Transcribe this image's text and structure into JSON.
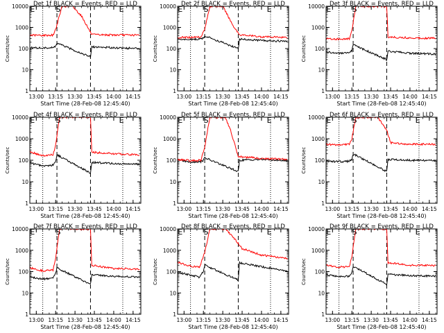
{
  "figure": {
    "xlabel": "Start Time (28-Feb-08 12:45:40)",
    "ylabel": "Counts/sec",
    "colors": {
      "events": "#000000",
      "lld": "#ff0000",
      "axes": "#000000"
    },
    "markers": {
      "E": "E",
      "S": "S"
    }
  },
  "chart_data": [
    {
      "type": "line",
      "title": "Det 1f BLACK = Events, RED = LLD",
      "xlabel": "Start Time (28-Feb-08 12:45:40)",
      "ylabel": "Counts/sec",
      "yscale": "log",
      "ylim": [
        1,
        10000
      ],
      "x_ticks": [
        "13:00",
        "13:15",
        "13:30",
        "13:45",
        "14:00",
        "14:15"
      ],
      "y_ticks": [
        "1",
        "10",
        "100",
        "1000",
        "10000"
      ],
      "dotted_x": [
        "13:05",
        "14:07"
      ],
      "dashed_x": [
        "13:16",
        "13:42"
      ],
      "markers": [
        {
          "label": "E",
          "x": "12:57"
        },
        {
          "label": "S",
          "x": "13:17"
        },
        {
          "label": "E",
          "x": "14:06"
        }
      ],
      "series": [
        {
          "name": "BLACK = Events",
          "color": "#000000",
          "x": [
            "12:55",
            "13:05",
            "13:13",
            "13:15",
            "13:16",
            "13:42",
            "13:43",
            "14:00",
            "14:20"
          ],
          "values": [
            110,
            105,
            110,
            130,
            180,
            40,
            120,
            110,
            100
          ]
        },
        {
          "name": "RED = LLD",
          "color": "#ff0000",
          "x": [
            "12:55",
            "13:05",
            "13:13",
            "13:15",
            "13:20",
            "13:28",
            "13:35",
            "13:43",
            "14:00",
            "14:20"
          ],
          "values": [
            430,
            420,
            430,
            800,
            10000,
            10000,
            3500,
            450,
            440,
            430
          ]
        }
      ]
    },
    {
      "type": "line",
      "title": "Det 2f BLACK = Events, RED = LLD",
      "xlabel": "Start Time (28-Feb-08 12:45:40)",
      "ylabel": "Counts/sec",
      "yscale": "log",
      "ylim": [
        1,
        10000
      ],
      "x_ticks": [
        "13:00",
        "13:15",
        "13:30",
        "13:45",
        "14:00",
        "14:15"
      ],
      "y_ticks": [
        "1",
        "10",
        "100",
        "1000",
        "10000"
      ],
      "dotted_x": [
        "13:05",
        "14:07"
      ],
      "dashed_x": [
        "13:16",
        "13:42"
      ],
      "markers": [
        {
          "label": "E",
          "x": "12:57"
        },
        {
          "label": "S",
          "x": "13:17"
        },
        {
          "label": "E",
          "x": "14:06"
        }
      ],
      "series": [
        {
          "name": "BLACK = Events",
          "color": "#000000",
          "x": [
            "12:55",
            "13:05",
            "13:13",
            "13:15",
            "13:16",
            "13:42",
            "13:43",
            "14:00",
            "14:20"
          ],
          "values": [
            260,
            270,
            280,
            320,
            400,
            100,
            280,
            240,
            220
          ]
        },
        {
          "name": "RED = LLD",
          "color": "#ff0000",
          "x": [
            "12:55",
            "13:05",
            "13:13",
            "13:16",
            "13:20",
            "13:30",
            "13:38",
            "13:43",
            "14:00",
            "14:20"
          ],
          "values": [
            330,
            340,
            360,
            800,
            10000,
            10000,
            1200,
            450,
            360,
            340
          ]
        }
      ]
    },
    {
      "type": "line",
      "title": "Det 3f BLACK = Events, RED = LLD",
      "xlabel": "Start Time (28-Feb-08 12:45:40)",
      "ylabel": "Counts/sec",
      "yscale": "log",
      "ylim": [
        1,
        10000
      ],
      "x_ticks": [
        "13:00",
        "13:15",
        "13:30",
        "13:45",
        "14:00",
        "14:15"
      ],
      "y_ticks": [
        "1",
        "10",
        "100",
        "1000",
        "10000"
      ],
      "dotted_x": [
        "13:05",
        "14:07"
      ],
      "dashed_x": [
        "13:16",
        "13:42"
      ],
      "markers": [
        {
          "label": "E",
          "x": "12:57"
        },
        {
          "label": "S",
          "x": "13:17"
        },
        {
          "label": "E",
          "x": "14:06"
        }
      ],
      "series": [
        {
          "name": "BLACK = Events",
          "color": "#000000",
          "x": [
            "12:55",
            "13:05",
            "13:13",
            "13:15",
            "13:16",
            "13:42",
            "13:43",
            "14:00",
            "14:20"
          ],
          "values": [
            70,
            60,
            60,
            80,
            150,
            30,
            75,
            60,
            55
          ]
        },
        {
          "name": "RED = LLD",
          "color": "#ff0000",
          "x": [
            "12:55",
            "13:05",
            "13:13",
            "13:15",
            "13:18",
            "13:42",
            "13:43",
            "14:00",
            "14:20"
          ],
          "values": [
            300,
            280,
            290,
            700,
            10000,
            10000,
            350,
            320,
            310
          ]
        }
      ]
    },
    {
      "type": "line",
      "title": "Det 4f BLACK = Events, RED = LLD",
      "xlabel": "Start Time (28-Feb-08 12:45:40)",
      "ylabel": "Counts/sec",
      "yscale": "log",
      "ylim": [
        1,
        10000
      ],
      "x_ticks": [
        "13:00",
        "13:15",
        "13:30",
        "13:45",
        "14:00",
        "14:15"
      ],
      "y_ticks": [
        "1",
        "10",
        "100",
        "1000",
        "10000"
      ],
      "dotted_x": [
        "13:05",
        "14:07"
      ],
      "dashed_x": [
        "13:16",
        "13:42"
      ],
      "markers": [
        {
          "label": "E",
          "x": "12:57"
        },
        {
          "label": "S",
          "x": "13:17"
        },
        {
          "label": "E",
          "x": "14:06"
        }
      ],
      "series": [
        {
          "name": "BLACK = Events",
          "color": "#000000",
          "x": [
            "12:55",
            "13:05",
            "13:13",
            "13:15",
            "13:16",
            "13:42",
            "13:43",
            "14:00",
            "14:20"
          ],
          "values": [
            75,
            55,
            60,
            90,
            180,
            25,
            80,
            70,
            65
          ]
        },
        {
          "name": "RED = LLD",
          "color": "#ff0000",
          "x": [
            "12:55",
            "13:05",
            "13:13",
            "13:15",
            "13:18",
            "13:42",
            "13:43",
            "14:00",
            "14:20"
          ],
          "values": [
            250,
            160,
            180,
            500,
            10000,
            10000,
            240,
            200,
            180
          ]
        }
      ]
    },
    {
      "type": "line",
      "title": "Det 5f BLACK = Events, RED = LLD",
      "xlabel": "Start Time (28-Feb-08 12:45:40)",
      "ylabel": "Counts/sec",
      "yscale": "log",
      "ylim": [
        1,
        10000
      ],
      "x_ticks": [
        "13:00",
        "13:15",
        "13:30",
        "13:45",
        "14:00",
        "14:15"
      ],
      "y_ticks": [
        "1",
        "10",
        "100",
        "1000",
        "10000"
      ],
      "dotted_x": [
        "13:05",
        "14:07"
      ],
      "dashed_x": [
        "13:16",
        "13:42"
      ],
      "markers": [
        {
          "label": "E",
          "x": "12:57"
        },
        {
          "label": "S",
          "x": "13:17"
        },
        {
          "label": "E",
          "x": "14:06"
        }
      ],
      "series": [
        {
          "name": "BLACK = Events",
          "color": "#000000",
          "x": [
            "12:55",
            "13:05",
            "13:13",
            "13:15",
            "13:16",
            "13:42",
            "13:43",
            "14:00",
            "14:20"
          ],
          "values": [
            100,
            85,
            85,
            100,
            130,
            30,
            100,
            110,
            95
          ]
        },
        {
          "name": "RED = LLD",
          "color": "#ff0000",
          "x": [
            "12:55",
            "13:05",
            "13:13",
            "13:16",
            "13:20",
            "13:32",
            "13:36",
            "13:42",
            "14:00",
            "14:20"
          ],
          "values": [
            110,
            95,
            100,
            400,
            10000,
            10000,
            2500,
            150,
            120,
            110
          ]
        }
      ]
    },
    {
      "type": "line",
      "title": "Det 6f BLACK = Events, RED = LLD",
      "xlabel": "Start Time (28-Feb-08 12:45:40)",
      "ylabel": "Counts/sec",
      "yscale": "log",
      "ylim": [
        1,
        10000
      ],
      "x_ticks": [
        "13:00",
        "13:15",
        "13:30",
        "13:45",
        "14:00",
        "14:15"
      ],
      "y_ticks": [
        "1",
        "10",
        "100",
        "1000",
        "10000"
      ],
      "dotted_x": [
        "13:05",
        "14:07"
      ],
      "dashed_x": [
        "13:16",
        "13:42"
      ],
      "markers": [
        {
          "label": "E",
          "x": "12:57"
        },
        {
          "label": "S",
          "x": "13:17"
        },
        {
          "label": "E",
          "x": "14:06"
        }
      ],
      "series": [
        {
          "name": "BLACK = Events",
          "color": "#000000",
          "x": [
            "12:55",
            "13:05",
            "13:13",
            "13:15",
            "13:16",
            "13:42",
            "13:43",
            "14:00",
            "14:20"
          ],
          "values": [
            90,
            85,
            90,
            110,
            200,
            30,
            110,
            100,
            95
          ]
        },
        {
          "name": "RED = LLD",
          "color": "#ff0000",
          "x": [
            "12:55",
            "13:05",
            "13:13",
            "13:15",
            "13:18",
            "13:35",
            "13:42",
            "13:45",
            "14:00",
            "14:20"
          ],
          "values": [
            550,
            520,
            560,
            1000,
            10000,
            10000,
            2500,
            650,
            560,
            550
          ]
        }
      ]
    },
    {
      "type": "line",
      "title": "Det 7f BLACK = Events, RED = LLD",
      "xlabel": "Start Time (28-Feb-08 12:45:40)",
      "ylabel": "Counts/sec",
      "yscale": "log",
      "ylim": [
        1,
        10000
      ],
      "x_ticks": [
        "13:00",
        "13:15",
        "13:30",
        "13:45",
        "14:00",
        "14:15"
      ],
      "y_ticks": [
        "1",
        "10",
        "100",
        "1000",
        "10000"
      ],
      "dotted_x": [
        "13:05",
        "14:07"
      ],
      "dashed_x": [
        "13:16",
        "13:42"
      ],
      "markers": [
        {
          "label": "E",
          "x": "12:57"
        },
        {
          "label": "S",
          "x": "13:17"
        },
        {
          "label": "E",
          "x": "14:06"
        }
      ],
      "series": [
        {
          "name": "BLACK = Events",
          "color": "#000000",
          "x": [
            "12:55",
            "13:05",
            "13:13",
            "13:15",
            "13:16",
            "13:42",
            "13:43",
            "14:00",
            "14:20"
          ],
          "values": [
            55,
            45,
            50,
            80,
            150,
            25,
            70,
            60,
            55
          ]
        },
        {
          "name": "RED = LLD",
          "color": "#ff0000",
          "x": [
            "12:55",
            "13:05",
            "13:13",
            "13:15",
            "13:18",
            "13:42",
            "13:43",
            "14:00",
            "14:20"
          ],
          "values": [
            150,
            110,
            120,
            400,
            10000,
            10000,
            200,
            140,
            130
          ]
        }
      ]
    },
    {
      "type": "line",
      "title": "Det 8f BLACK = Events, RED = LLD",
      "xlabel": "Start Time (28-Feb-08 12:45:40)",
      "ylabel": "Counts/sec",
      "yscale": "log",
      "ylim": [
        1,
        10000
      ],
      "x_ticks": [
        "13:00",
        "13:15",
        "13:30",
        "13:45",
        "14:00",
        "14:15"
      ],
      "y_ticks": [
        "1",
        "10",
        "100",
        "1000",
        "10000"
      ],
      "dotted_x": [
        "13:05",
        "14:07"
      ],
      "dashed_x": [
        "13:16",
        "13:42"
      ],
      "markers": [
        {
          "label": "E",
          "x": "12:57"
        },
        {
          "label": "S",
          "x": "13:17"
        },
        {
          "label": "E",
          "x": "14:06"
        }
      ],
      "series": [
        {
          "name": "BLACK = Events",
          "color": "#000000",
          "x": [
            "12:55",
            "13:05",
            "13:12",
            "13:15",
            "13:16",
            "13:42",
            "13:43",
            "14:00",
            "14:20"
          ],
          "values": [
            90,
            70,
            55,
            100,
            200,
            40,
            260,
            170,
            110
          ]
        },
        {
          "name": "RED = LLD",
          "color": "#ff0000",
          "x": [
            "12:55",
            "13:05",
            "13:12",
            "13:16",
            "13:20",
            "13:32",
            "13:40",
            "13:45",
            "14:00",
            "14:20"
          ],
          "values": [
            280,
            180,
            160,
            800,
            10000,
            10000,
            3000,
            1200,
            600,
            400
          ]
        }
      ]
    },
    {
      "type": "line",
      "title": "Det 9f BLACK = Events, RED = LLD",
      "xlabel": "Start Time (28-Feb-08 12:45:40)",
      "ylabel": "Counts/sec",
      "yscale": "log",
      "ylim": [
        1,
        10000
      ],
      "x_ticks": [
        "13:00",
        "13:15",
        "13:30",
        "13:45",
        "14:00",
        "14:15"
      ],
      "y_ticks": [
        "1",
        "10",
        "100",
        "1000",
        "10000"
      ],
      "dotted_x": [
        "13:05",
        "14:07"
      ],
      "dashed_x": [
        "13:16",
        "13:42"
      ],
      "markers": [
        {
          "label": "E",
          "x": "12:57"
        },
        {
          "label": "S",
          "x": "13:17"
        },
        {
          "label": "E",
          "x": "14:06"
        }
      ],
      "series": [
        {
          "name": "BLACK = Events",
          "color": "#000000",
          "x": [
            "12:55",
            "13:05",
            "13:13",
            "13:15",
            "13:16",
            "13:42",
            "13:43",
            "14:00",
            "14:20"
          ],
          "values": [
            70,
            60,
            60,
            90,
            180,
            25,
            75,
            65,
            60
          ]
        },
        {
          "name": "RED = LLD",
          "color": "#ff0000",
          "x": [
            "12:55",
            "13:05",
            "13:13",
            "13:15",
            "13:18",
            "13:42",
            "13:43",
            "14:00",
            "14:20"
          ],
          "values": [
            200,
            160,
            170,
            500,
            10000,
            10000,
            260,
            200,
            190
          ]
        }
      ]
    }
  ]
}
